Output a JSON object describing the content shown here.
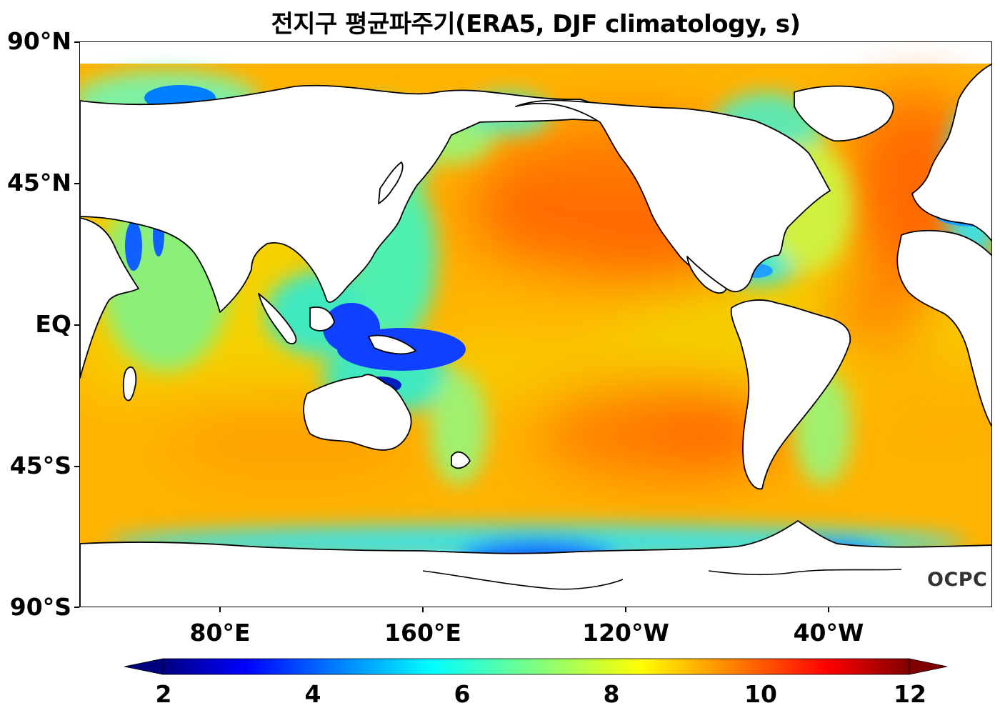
{
  "title": "전지구 평균파주기(ERA5, DJF climatology, s)",
  "y_axis": {
    "ticks": [
      "90°N",
      "45°N",
      "EQ",
      "45°S",
      "90°S"
    ]
  },
  "x_axis": {
    "ticks": [
      "80°E",
      "160°E",
      "120°W",
      "40°W"
    ]
  },
  "colorbar": {
    "ticks": [
      "2",
      "4",
      "6",
      "8",
      "10",
      "12"
    ],
    "range": [
      2,
      12
    ],
    "colormap": "jet",
    "extend": "both",
    "colors": [
      "#00007f",
      "#0000ff",
      "#007fff",
      "#00ffff",
      "#7fff7f",
      "#ffff00",
      "#ff7f00",
      "#ff0000",
      "#7f0000"
    ]
  },
  "logo": "OCPC",
  "map": {
    "projection": "PlateCarree",
    "central_longitude": "160°W",
    "variable": "mean wave period",
    "land_color": "#ffffff",
    "coastline_color": "#000000"
  }
}
